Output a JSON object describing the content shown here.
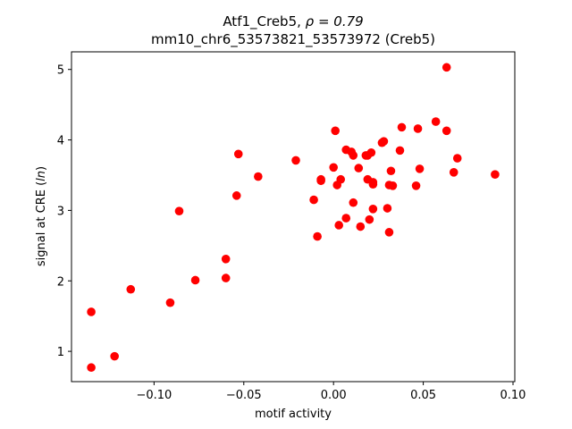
{
  "chart_data": {
    "type": "scatter",
    "title_line1_prefix": "Atf1_Creb5, ",
    "title_line1_rho": "ρ = 0.79",
    "title_line2": "mm10_chr6_53573821_53573972 (Creb5)",
    "xlabel": "motif activity",
    "ylabel_prefix": "signal at CRE (",
    "ylabel_italic": "ln",
    "ylabel_suffix": ")",
    "xlim": [
      -0.146,
      0.101
    ],
    "ylim": [
      0.57,
      5.25
    ],
    "xticks": [
      -0.1,
      -0.05,
      0.0,
      0.05,
      0.1
    ],
    "xtick_labels": [
      "−0.10",
      "−0.05",
      "0.00",
      "0.05",
      "0.10"
    ],
    "yticks": [
      1,
      2,
      3,
      4,
      5
    ],
    "ytick_labels": [
      "1",
      "2",
      "3",
      "4",
      "5"
    ],
    "grid": false,
    "marker_color": "#ff0000",
    "points": [
      [
        -0.135,
        0.77
      ],
      [
        -0.122,
        0.93
      ],
      [
        -0.135,
        1.56
      ],
      [
        -0.113,
        1.88
      ],
      [
        -0.091,
        1.69
      ],
      [
        -0.077,
        2.01
      ],
      [
        -0.086,
        2.99
      ],
      [
        -0.06,
        2.04
      ],
      [
        -0.06,
        2.31
      ],
      [
        -0.054,
        3.21
      ],
      [
        -0.053,
        3.8
      ],
      [
        -0.042,
        3.48
      ],
      [
        -0.021,
        3.71
      ],
      [
        -0.011,
        3.15
      ],
      [
        -0.009,
        2.63
      ],
      [
        -0.007,
        3.42
      ],
      [
        -0.007,
        3.44
      ],
      [
        0.0,
        3.61
      ],
      [
        0.001,
        4.13
      ],
      [
        0.002,
        3.36
      ],
      [
        0.003,
        2.79
      ],
      [
        0.004,
        3.44
      ],
      [
        0.007,
        2.89
      ],
      [
        0.007,
        3.86
      ],
      [
        0.01,
        3.83
      ],
      [
        0.011,
        3.78
      ],
      [
        0.011,
        3.11
      ],
      [
        0.014,
        3.6
      ],
      [
        0.015,
        2.77
      ],
      [
        0.018,
        3.78
      ],
      [
        0.019,
        3.44
      ],
      [
        0.019,
        3.78
      ],
      [
        0.02,
        2.87
      ],
      [
        0.021,
        3.82
      ],
      [
        0.022,
        3.37
      ],
      [
        0.022,
        3.4
      ],
      [
        0.022,
        3.02
      ],
      [
        0.027,
        3.96
      ],
      [
        0.028,
        3.98
      ],
      [
        0.03,
        3.03
      ],
      [
        0.031,
        2.69
      ],
      [
        0.031,
        3.36
      ],
      [
        0.032,
        3.56
      ],
      [
        0.033,
        3.35
      ],
      [
        0.037,
        3.85
      ],
      [
        0.038,
        4.18
      ],
      [
        0.046,
        3.35
      ],
      [
        0.047,
        4.16
      ],
      [
        0.048,
        3.59
      ],
      [
        0.057,
        4.26
      ],
      [
        0.063,
        4.13
      ],
      [
        0.063,
        5.03
      ],
      [
        0.067,
        3.54
      ],
      [
        0.069,
        3.74
      ],
      [
        0.09,
        3.51
      ]
    ]
  }
}
